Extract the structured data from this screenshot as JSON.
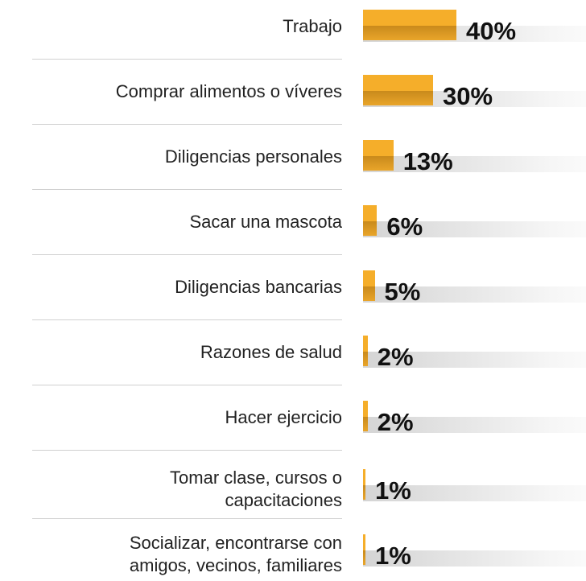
{
  "chart_data": {
    "type": "barh",
    "categories": [
      "Trabajo",
      "Comprar alimentos o víveres",
      "Diligencias personales",
      "Sacar una mascota",
      "Diligencias bancarias",
      "Razones de salud",
      "Hacer ejercicio",
      "Tomar clase, cursos o\ncapacitaciones",
      "Socializar, encontrarse con\namigos, vecinos, familiares"
    ],
    "values": [
      40,
      30,
      13,
      6,
      5,
      2,
      2,
      1,
      1
    ],
    "value_labels": [
      "40%",
      "30%",
      "13%",
      "6%",
      "5%",
      "2%",
      "2%",
      "1%",
      "1%"
    ],
    "color": "#f5ae2a"
  }
}
